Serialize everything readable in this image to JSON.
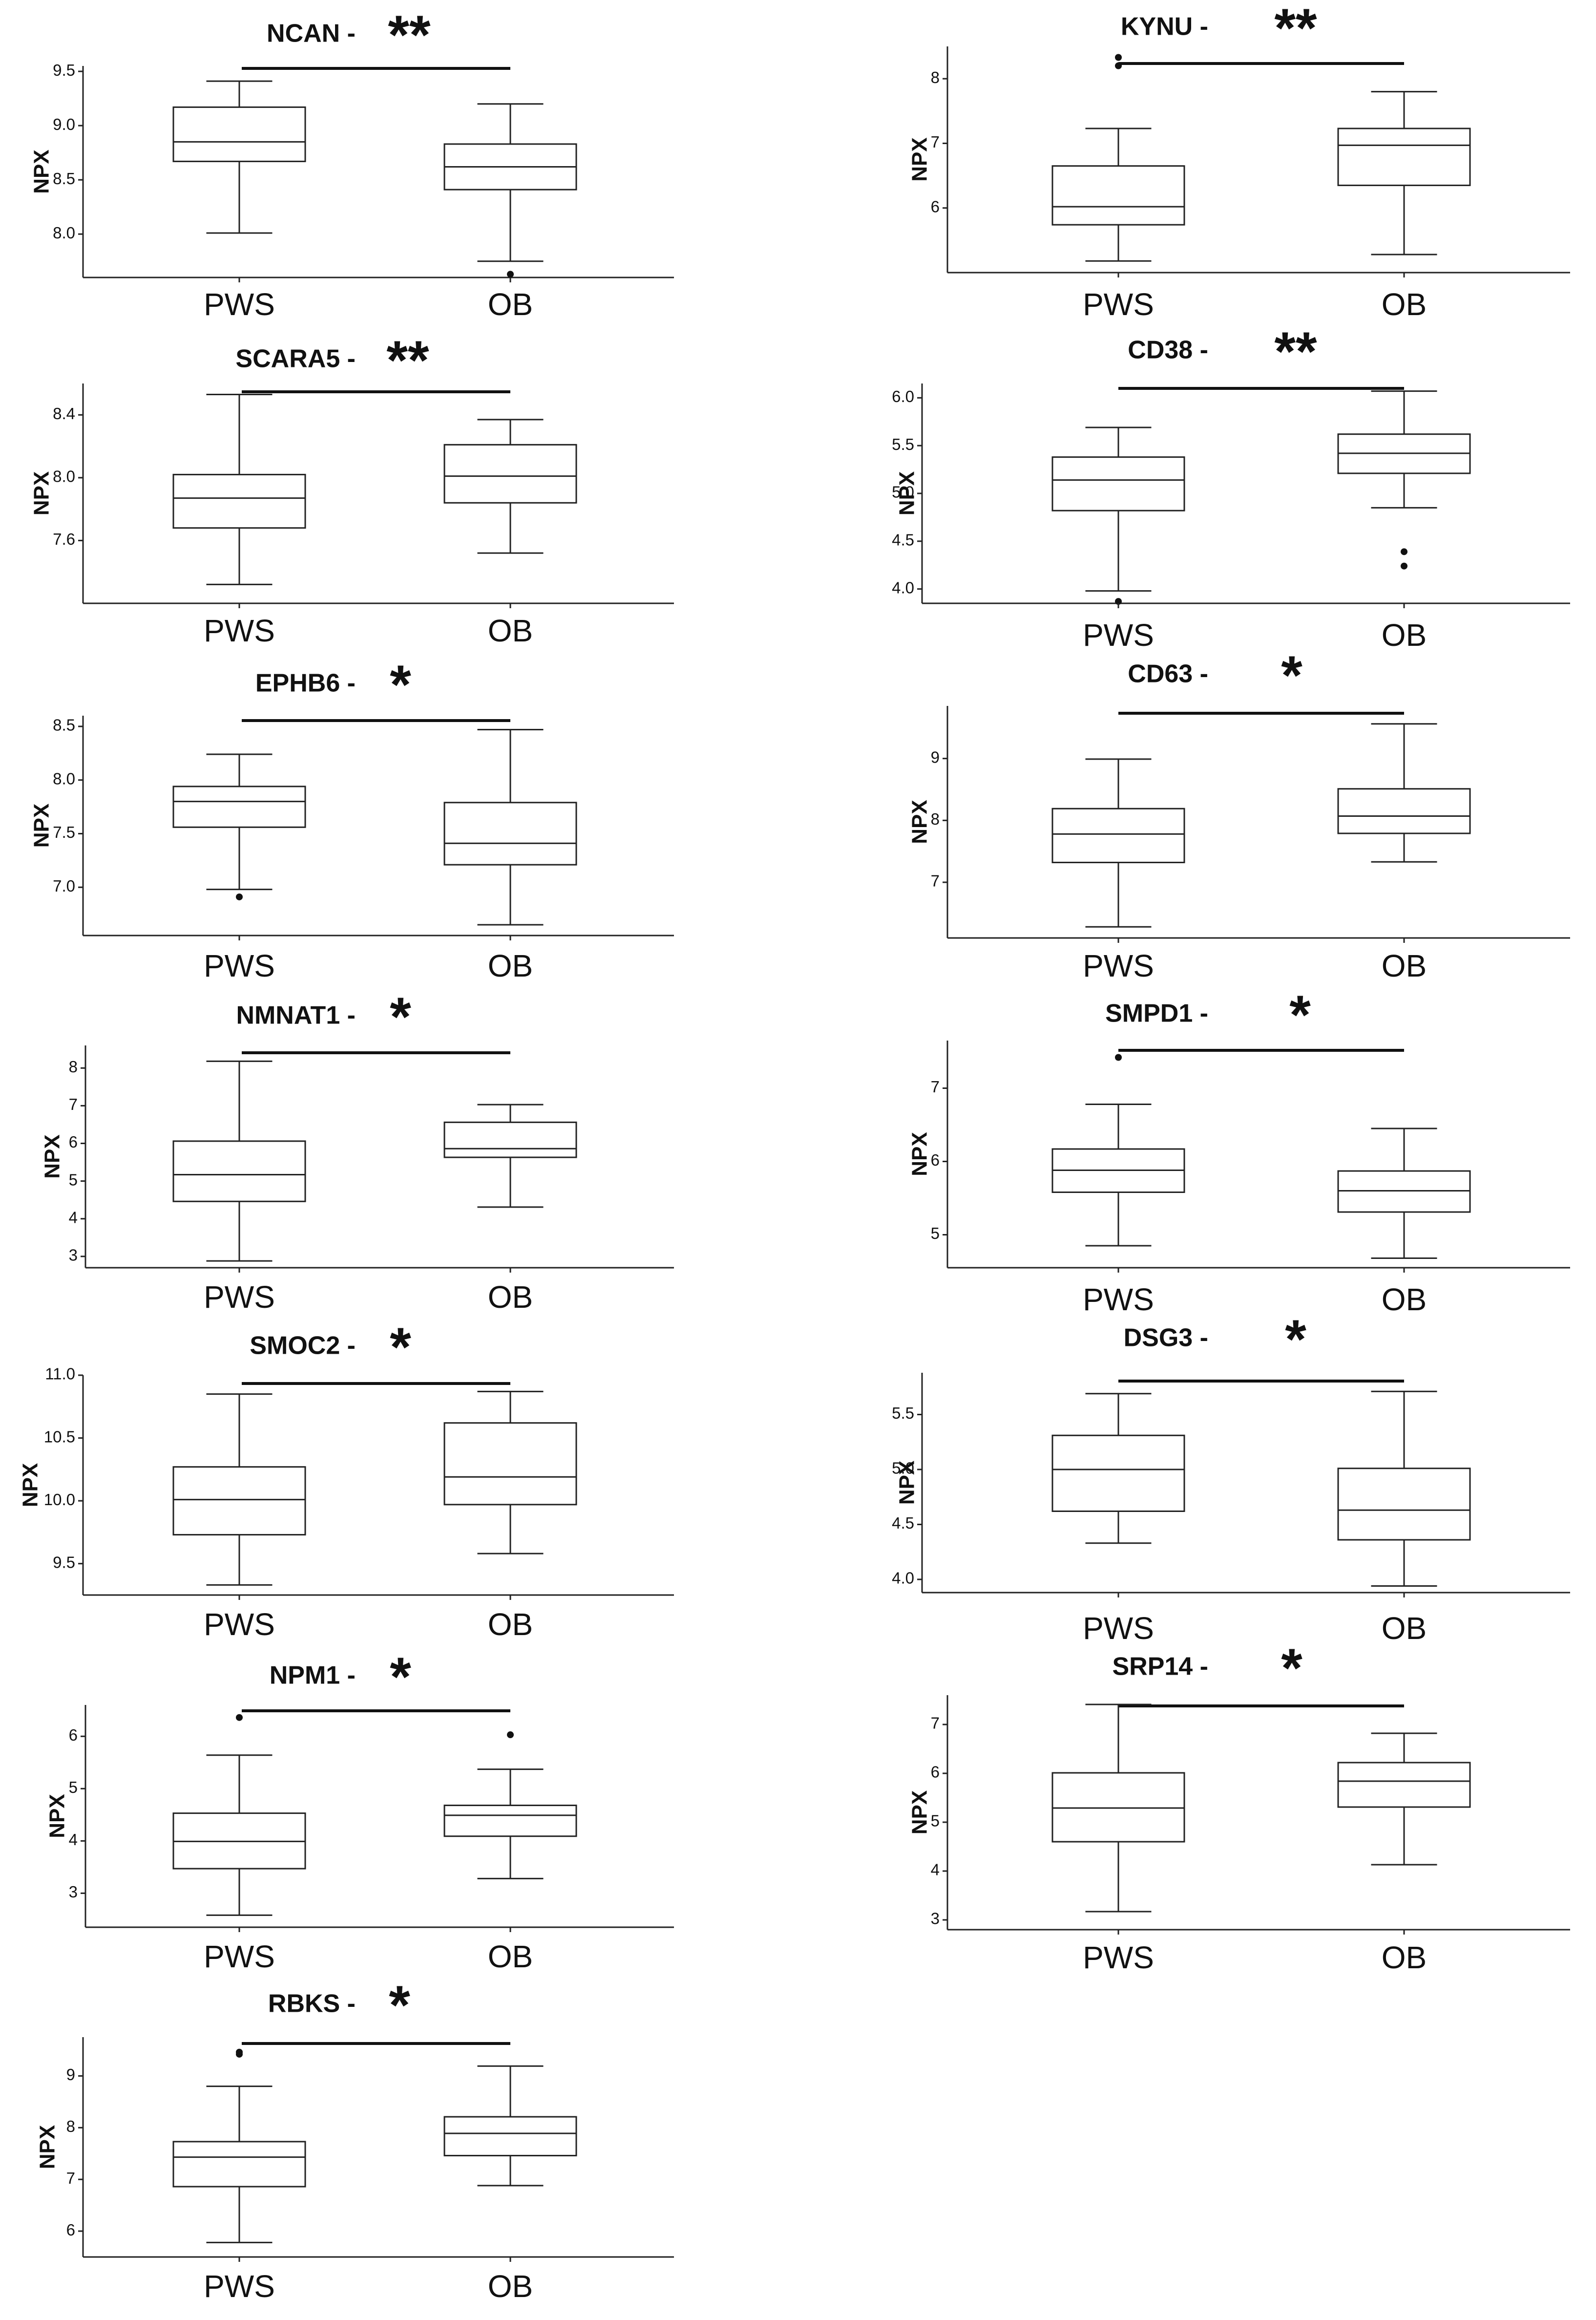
{
  "figure": {
    "y_axis_label": "NPX",
    "groups": [
      "PWS",
      "OB"
    ]
  },
  "chart_data": [
    {
      "type": "box",
      "title": "NCAN -",
      "significance": "**",
      "ylabel": "NPX",
      "categories": [
        "PWS",
        "OB"
      ],
      "ylim": [
        7.6,
        9.55
      ],
      "ticks": [
        8.0,
        8.5,
        9.0,
        9.5
      ],
      "tick_labels": [
        "8.0",
        "8.5",
        "9.0",
        "9.5"
      ],
      "boxes": [
        {
          "group": "PWS",
          "min": 8.01,
          "q1": 8.67,
          "median": 8.85,
          "q3": 9.17,
          "max": 9.41,
          "outliers": []
        },
        {
          "group": "OB",
          "min": 7.75,
          "q1": 8.41,
          "median": 8.62,
          "q3": 8.83,
          "max": 9.2,
          "outliers": [
            7.63
          ]
        }
      ]
    },
    {
      "type": "box",
      "title": "KYNU -",
      "significance": "**",
      "ylabel": "NPX",
      "categories": [
        "PWS",
        "OB"
      ],
      "ylim": [
        5.0,
        8.5
      ],
      "ticks": [
        6,
        7,
        8
      ],
      "tick_labels": [
        "6",
        "7",
        "8"
      ],
      "boxes": [
        {
          "group": "PWS",
          "min": 5.18,
          "q1": 5.74,
          "median": 6.02,
          "q3": 6.65,
          "max": 7.23,
          "outliers": [
            8.2,
            8.33
          ]
        },
        {
          "group": "OB",
          "min": 5.28,
          "q1": 6.35,
          "median": 6.97,
          "q3": 7.23,
          "max": 7.8,
          "outliers": []
        }
      ]
    },
    {
      "type": "box",
      "title": "SCARA5 -",
      "significance": "**",
      "ylabel": "NPX",
      "categories": [
        "PWS",
        "OB"
      ],
      "ylim": [
        7.2,
        8.6
      ],
      "ticks": [
        7.6,
        8.0,
        8.4
      ],
      "tick_labels": [
        "7.6",
        "8.0",
        "8.4"
      ],
      "boxes": [
        {
          "group": "PWS",
          "min": 7.32,
          "q1": 7.68,
          "median": 7.87,
          "q3": 8.02,
          "max": 8.53,
          "outliers": []
        },
        {
          "group": "OB",
          "min": 7.52,
          "q1": 7.84,
          "median": 8.01,
          "q3": 8.21,
          "max": 8.37,
          "outliers": []
        }
      ]
    },
    {
      "type": "box",
      "title": "CD38 -",
      "significance": "**",
      "ylabel": "NPX",
      "categories": [
        "PWS",
        "OB"
      ],
      "ylim": [
        3.85,
        6.15
      ],
      "ticks": [
        4.0,
        4.5,
        5.0,
        5.5,
        6.0
      ],
      "tick_labels": [
        "4.0",
        "4.5",
        "5.0",
        "5.5",
        "6.0"
      ],
      "boxes": [
        {
          "group": "PWS",
          "min": 3.98,
          "q1": 4.82,
          "median": 5.14,
          "q3": 5.38,
          "max": 5.69,
          "outliers": [
            3.87
          ]
        },
        {
          "group": "OB",
          "min": 4.85,
          "q1": 5.21,
          "median": 5.42,
          "q3": 5.62,
          "max": 6.07,
          "outliers": [
            4.24,
            4.39
          ]
        }
      ]
    },
    {
      "type": "box",
      "title": "EPHB6 -",
      "significance": "*",
      "ylabel": "NPX",
      "categories": [
        "PWS",
        "OB"
      ],
      "ylim": [
        6.55,
        8.6
      ],
      "ticks": [
        7.0,
        7.5,
        8.0,
        8.5
      ],
      "tick_labels": [
        "7.0",
        "7.5",
        "8.0",
        "8.5"
      ],
      "boxes": [
        {
          "group": "PWS",
          "min": 6.98,
          "q1": 7.56,
          "median": 7.8,
          "q3": 7.94,
          "max": 8.24,
          "outliers": [
            6.91
          ]
        },
        {
          "group": "OB",
          "min": 6.65,
          "q1": 7.21,
          "median": 7.41,
          "q3": 7.79,
          "max": 8.47,
          "outliers": []
        }
      ]
    },
    {
      "type": "box",
      "title": "CD63 -",
      "significance": "*",
      "ylabel": "NPX",
      "categories": [
        "PWS",
        "OB"
      ],
      "ylim": [
        6.1,
        9.85
      ],
      "ticks": [
        7,
        8,
        9
      ],
      "tick_labels": [
        "7",
        "8",
        "9"
      ],
      "boxes": [
        {
          "group": "PWS",
          "min": 6.28,
          "q1": 7.32,
          "median": 7.78,
          "q3": 8.19,
          "max": 8.99,
          "outliers": []
        },
        {
          "group": "OB",
          "min": 7.33,
          "q1": 7.79,
          "median": 8.07,
          "q3": 8.51,
          "max": 9.56,
          "outliers": []
        }
      ]
    },
    {
      "type": "box",
      "title": "NMNAT1 -",
      "significance": "*",
      "ylabel": "NPX",
      "categories": [
        "PWS",
        "OB"
      ],
      "ylim": [
        2.7,
        8.6
      ],
      "ticks": [
        3,
        4,
        5,
        6,
        7,
        8
      ],
      "tick_labels": [
        "3",
        "4",
        "5",
        "6",
        "7",
        "8"
      ],
      "boxes": [
        {
          "group": "PWS",
          "min": 2.88,
          "q1": 4.46,
          "median": 5.17,
          "q3": 6.06,
          "max": 8.18,
          "outliers": []
        },
        {
          "group": "OB",
          "min": 4.31,
          "q1": 5.63,
          "median": 5.86,
          "q3": 6.56,
          "max": 7.03,
          "outliers": []
        }
      ]
    },
    {
      "type": "box",
      "title": "SMPD1 -",
      "significance": "*",
      "ylabel": "NPX",
      "categories": [
        "PWS",
        "OB"
      ],
      "ylim": [
        4.55,
        7.65
      ],
      "ticks": [
        5,
        6,
        7
      ],
      "tick_labels": [
        "5",
        "6",
        "7"
      ],
      "boxes": [
        {
          "group": "PWS",
          "min": 4.85,
          "q1": 5.58,
          "median": 5.88,
          "q3": 6.17,
          "max": 6.78,
          "outliers": [
            7.42
          ]
        },
        {
          "group": "OB",
          "min": 4.68,
          "q1": 5.31,
          "median": 5.6,
          "q3": 5.87,
          "max": 6.45,
          "outliers": []
        }
      ]
    },
    {
      "type": "box",
      "title": "SMOC2 -",
      "significance": "*",
      "ylabel": "NPX",
      "categories": [
        "PWS",
        "OB"
      ],
      "ylim": [
        9.25,
        11.0
      ],
      "ticks": [
        9.5,
        10.0,
        10.5,
        11.0
      ],
      "tick_labels": [
        "9.5",
        "10.0",
        "10.5",
        "11.0"
      ],
      "boxes": [
        {
          "group": "PWS",
          "min": 9.33,
          "q1": 9.73,
          "median": 10.01,
          "q3": 10.27,
          "max": 10.85,
          "outliers": []
        },
        {
          "group": "OB",
          "min": 9.58,
          "q1": 9.97,
          "median": 10.19,
          "q3": 10.62,
          "max": 10.87,
          "outliers": []
        }
      ]
    },
    {
      "type": "box",
      "title": "DSG3 -",
      "significance": "*",
      "ylabel": "NPX",
      "categories": [
        "PWS",
        "OB"
      ],
      "ylim": [
        3.88,
        5.88
      ],
      "ticks": [
        4.0,
        4.5,
        5.0,
        5.5
      ],
      "tick_labels": [
        "4.0",
        "4.5",
        "5.0",
        "5.5"
      ],
      "boxes": [
        {
          "group": "PWS",
          "min": 4.33,
          "q1": 4.62,
          "median": 5.0,
          "q3": 5.31,
          "max": 5.69,
          "outliers": []
        },
        {
          "group": "OB",
          "min": 3.94,
          "q1": 4.36,
          "median": 4.63,
          "q3": 5.01,
          "max": 5.71,
          "outliers": []
        }
      ]
    },
    {
      "type": "box",
      "title": "NPM1 -",
      "significance": "*",
      "ylabel": "NPX",
      "categories": [
        "PWS",
        "OB"
      ],
      "ylim": [
        2.35,
        6.6
      ],
      "ticks": [
        3,
        4,
        5,
        6
      ],
      "tick_labels": [
        "3",
        "4",
        "5",
        "6"
      ],
      "boxes": [
        {
          "group": "PWS",
          "min": 2.58,
          "q1": 3.47,
          "median": 3.99,
          "q3": 4.53,
          "max": 5.64,
          "outliers": [
            6.36
          ]
        },
        {
          "group": "OB",
          "min": 3.28,
          "q1": 4.09,
          "median": 4.49,
          "q3": 4.68,
          "max": 5.37,
          "outliers": [
            6.03
          ]
        }
      ]
    },
    {
      "type": "box",
      "title": "SRP14 -",
      "significance": "*",
      "ylabel": "NPX",
      "categories": [
        "PWS",
        "OB"
      ],
      "ylim": [
        2.8,
        7.6
      ],
      "ticks": [
        3,
        4,
        5,
        6,
        7
      ],
      "tick_labels": [
        "3",
        "4",
        "5",
        "6",
        "7"
      ],
      "boxes": [
        {
          "group": "PWS",
          "min": 3.17,
          "q1": 4.6,
          "median": 5.29,
          "q3": 6.01,
          "max": 7.41,
          "outliers": []
        },
        {
          "group": "OB",
          "min": 4.13,
          "q1": 5.31,
          "median": 5.84,
          "q3": 6.22,
          "max": 6.82,
          "outliers": []
        }
      ]
    },
    {
      "type": "box",
      "title": "RBKS -",
      "significance": "*",
      "ylabel": "NPX",
      "categories": [
        "PWS",
        "OB"
      ],
      "ylim": [
        5.5,
        9.75
      ],
      "ticks": [
        6,
        7,
        8,
        9
      ],
      "tick_labels": [
        "6",
        "7",
        "8",
        "9"
      ],
      "boxes": [
        {
          "group": "PWS",
          "min": 5.78,
          "q1": 6.86,
          "median": 7.43,
          "q3": 7.73,
          "max": 8.8,
          "outliers": [
            9.42,
            9.46
          ]
        },
        {
          "group": "OB",
          "min": 6.88,
          "q1": 7.46,
          "median": 7.89,
          "q3": 8.21,
          "max": 9.19,
          "outliers": []
        }
      ]
    }
  ]
}
